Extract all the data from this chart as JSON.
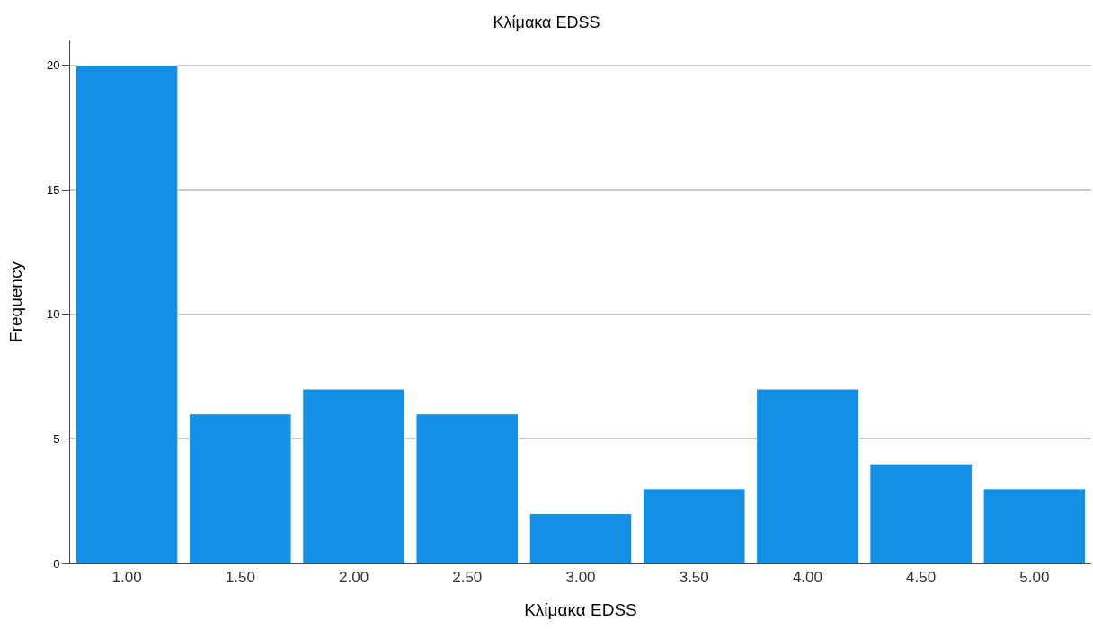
{
  "chart_data": {
    "type": "bar",
    "title": "Κλίμακα EDSS",
    "xlabel": "Κλίμακα EDSS",
    "ylabel": "Frequency",
    "categories": [
      "1.00",
      "1.50",
      "2.00",
      "2.50",
      "3.00",
      "3.50",
      "4.00",
      "4.50",
      "5.00"
    ],
    "values": [
      20,
      6,
      7,
      6,
      2,
      3,
      7,
      4,
      3
    ],
    "color": "#1390e6",
    "ylim": [
      0,
      21
    ],
    "yticks": [
      0,
      5,
      10,
      15,
      20
    ],
    "grid": "y"
  }
}
